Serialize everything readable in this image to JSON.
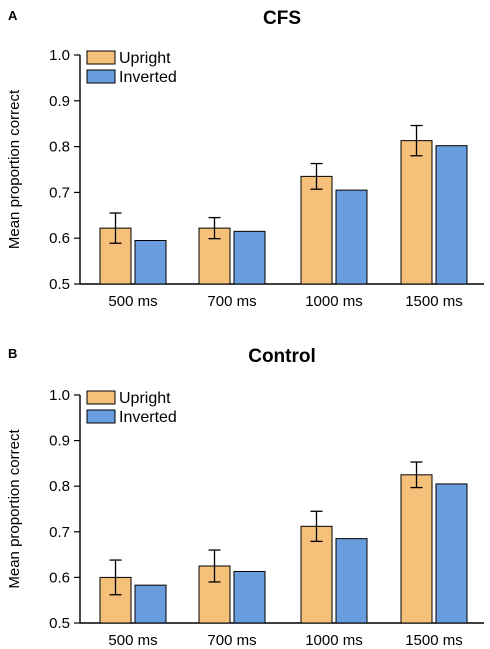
{
  "chart_data": [
    {
      "panel": "A",
      "type": "bar",
      "title": "CFS",
      "ylabel": "Mean proportion correct",
      "xlabel": "",
      "ylim": [
        0.5,
        1.0
      ],
      "yticks": [
        "0.5",
        "0.6",
        "0.7",
        "0.8",
        "0.9",
        "1.0"
      ],
      "categories": [
        "500 ms",
        "700 ms",
        "1000 ms",
        "1500 ms"
      ],
      "legend_position": "top-left",
      "series": [
        {
          "name": "Upright",
          "color": "#f5c07a",
          "values": [
            0.622,
            0.622,
            0.735,
            0.813
          ],
          "error": [
            0.033,
            0.023,
            0.028,
            0.033
          ]
        },
        {
          "name": "Inverted",
          "color": "#6a9ddd",
          "values": [
            0.595,
            0.615,
            0.705,
            0.802
          ]
        }
      ]
    },
    {
      "panel": "B",
      "type": "bar",
      "title": "Control",
      "ylabel": "Mean proportion correct",
      "xlabel": "",
      "ylim": [
        0.5,
        1.0
      ],
      "yticks": [
        "0.5",
        "0.6",
        "0.7",
        "0.8",
        "0.9",
        "1.0"
      ],
      "categories": [
        "500 ms",
        "700 ms",
        "1000 ms",
        "1500 ms"
      ],
      "legend_position": "top-left",
      "series": [
        {
          "name": "Upright",
          "color": "#f5c07a",
          "values": [
            0.6,
            0.625,
            0.712,
            0.825
          ],
          "error": [
            0.038,
            0.035,
            0.033,
            0.028
          ]
        },
        {
          "name": "Inverted",
          "color": "#6a9ddd",
          "values": [
            0.583,
            0.613,
            0.685,
            0.805
          ]
        }
      ]
    }
  ]
}
